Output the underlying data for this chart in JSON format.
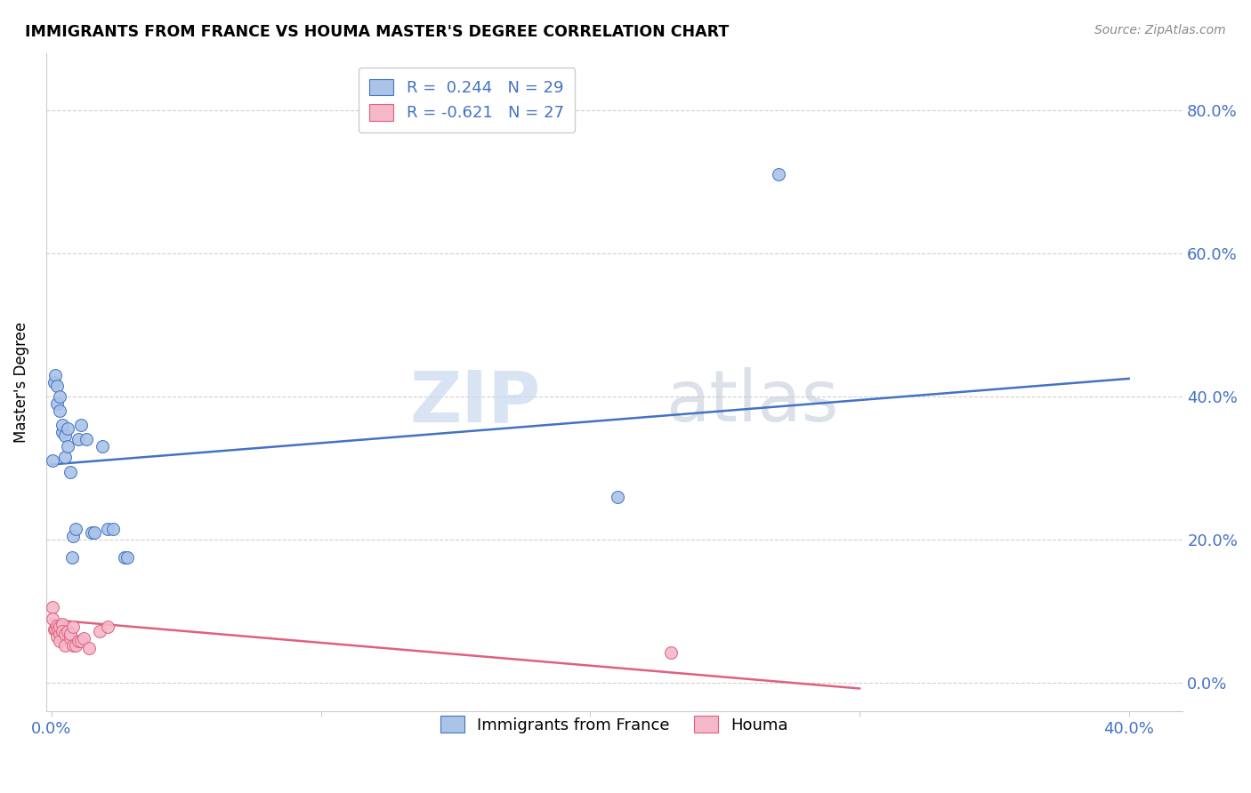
{
  "title": "IMMIGRANTS FROM FRANCE VS HOUMA MASTER'S DEGREE CORRELATION CHART",
  "source": "Source: ZipAtlas.com",
  "xlim": [
    -0.002,
    0.42
  ],
  "ylim": [
    -0.04,
    0.88
  ],
  "legend_blue_label": "R =  0.244   N = 29",
  "legend_pink_label": "R = -0.621   N = 27",
  "legend_bottom_blue": "Immigrants from France",
  "legend_bottom_pink": "Houma",
  "blue_scatter_x": [
    0.0005,
    0.001,
    0.0015,
    0.002,
    0.002,
    0.003,
    0.003,
    0.004,
    0.004,
    0.005,
    0.005,
    0.006,
    0.006,
    0.007,
    0.0075,
    0.008,
    0.009,
    0.01,
    0.011,
    0.013,
    0.015,
    0.016,
    0.019,
    0.021,
    0.023,
    0.027,
    0.028,
    0.21,
    0.27
  ],
  "blue_scatter_y": [
    0.31,
    0.42,
    0.43,
    0.39,
    0.415,
    0.38,
    0.4,
    0.35,
    0.36,
    0.345,
    0.315,
    0.355,
    0.33,
    0.295,
    0.175,
    0.205,
    0.215,
    0.34,
    0.36,
    0.34,
    0.21,
    0.21,
    0.33,
    0.215,
    0.215,
    0.175,
    0.175,
    0.26,
    0.71
  ],
  "pink_scatter_x": [
    0.0003,
    0.0005,
    0.001,
    0.0015,
    0.002,
    0.002,
    0.0025,
    0.003,
    0.003,
    0.003,
    0.004,
    0.004,
    0.005,
    0.005,
    0.006,
    0.007,
    0.007,
    0.008,
    0.008,
    0.009,
    0.01,
    0.011,
    0.012,
    0.014,
    0.018,
    0.021,
    0.23
  ],
  "pink_scatter_y": [
    0.105,
    0.09,
    0.075,
    0.075,
    0.08,
    0.065,
    0.075,
    0.068,
    0.058,
    0.078,
    0.082,
    0.072,
    0.068,
    0.052,
    0.072,
    0.062,
    0.068,
    0.078,
    0.052,
    0.052,
    0.058,
    0.058,
    0.062,
    0.048,
    0.072,
    0.078,
    0.042
  ],
  "blue_line_x": [
    0.0,
    0.4
  ],
  "blue_line_y": [
    0.305,
    0.425
  ],
  "pink_line_x": [
    0.0,
    0.3
  ],
  "pink_line_y": [
    0.088,
    -0.008
  ],
  "blue_color": "#aac4e8",
  "blue_line_color": "#4472c4",
  "pink_color": "#f4b8c8",
  "pink_line_color": "#e06080",
  "watermark_zip": "ZIP",
  "watermark_atlas": "atlas",
  "background_color": "#ffffff",
  "grid_color": "#d0d0d0",
  "x_tick_positions": [
    0.0,
    0.1,
    0.2,
    0.3,
    0.4
  ],
  "x_tick_labels": [
    "0.0%",
    "",
    "",
    "",
    "40.0%"
  ],
  "y_tick_positions": [
    0.0,
    0.2,
    0.4,
    0.6,
    0.8
  ],
  "y_tick_labels": [
    "0.0%",
    "20.0%",
    "40.0%",
    "60.0%",
    "80.0%"
  ]
}
